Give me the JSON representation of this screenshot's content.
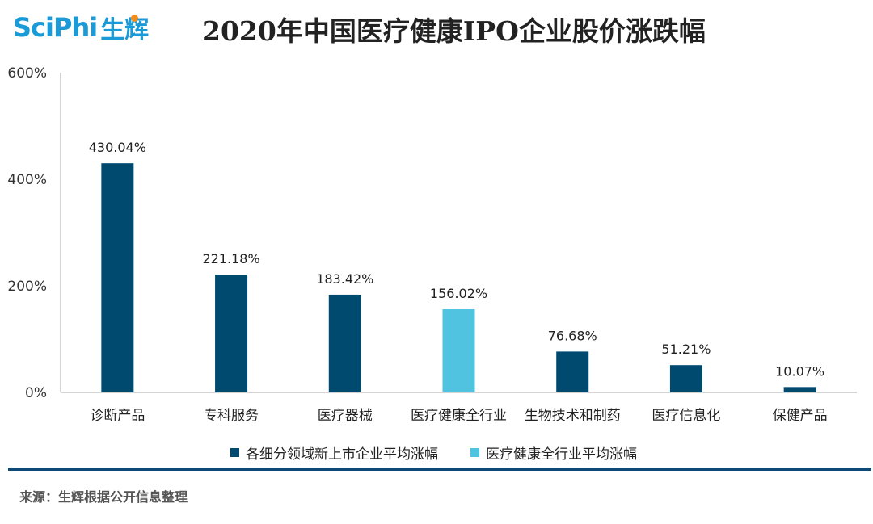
{
  "header": {
    "logo_word": "SciPhi",
    "logo_cn": "生辉",
    "title": "2020年中国医疗健康IPO企业股价涨跌幅"
  },
  "colors": {
    "primary": "#004a70",
    "highlight": "#4fc3e0",
    "axis": "#aaaaaa",
    "divider": "#0d4a78"
  },
  "chart_data": {
    "type": "bar",
    "categories": [
      "诊断产品",
      "专科服务",
      "医疗器械",
      "医疗健康全行业",
      "生物技术和制药",
      "医疗信息化",
      "保健产品"
    ],
    "values": [
      430.04,
      221.18,
      183.42,
      156.02,
      76.68,
      51.21,
      10.07
    ],
    "value_labels": [
      "430.04%",
      "221.18%",
      "183.42%",
      "156.02%",
      "76.68%",
      "51.21%",
      "10.07%"
    ],
    "highlight_index": 3,
    "ylim": [
      0,
      600
    ],
    "yticks": [
      0,
      200,
      400,
      600
    ],
    "ytick_labels": [
      "0%",
      "200%",
      "400%",
      "600%"
    ],
    "grid": false,
    "legend_position": "bottom",
    "legend": [
      {
        "name": "各细分领域新上市企业平均涨幅",
        "color": "#004a70"
      },
      {
        "name": "医疗健康全行业平均涨幅",
        "color": "#4fc3e0"
      }
    ]
  },
  "footer": {
    "source": "来源：生辉根据公开信息整理"
  }
}
